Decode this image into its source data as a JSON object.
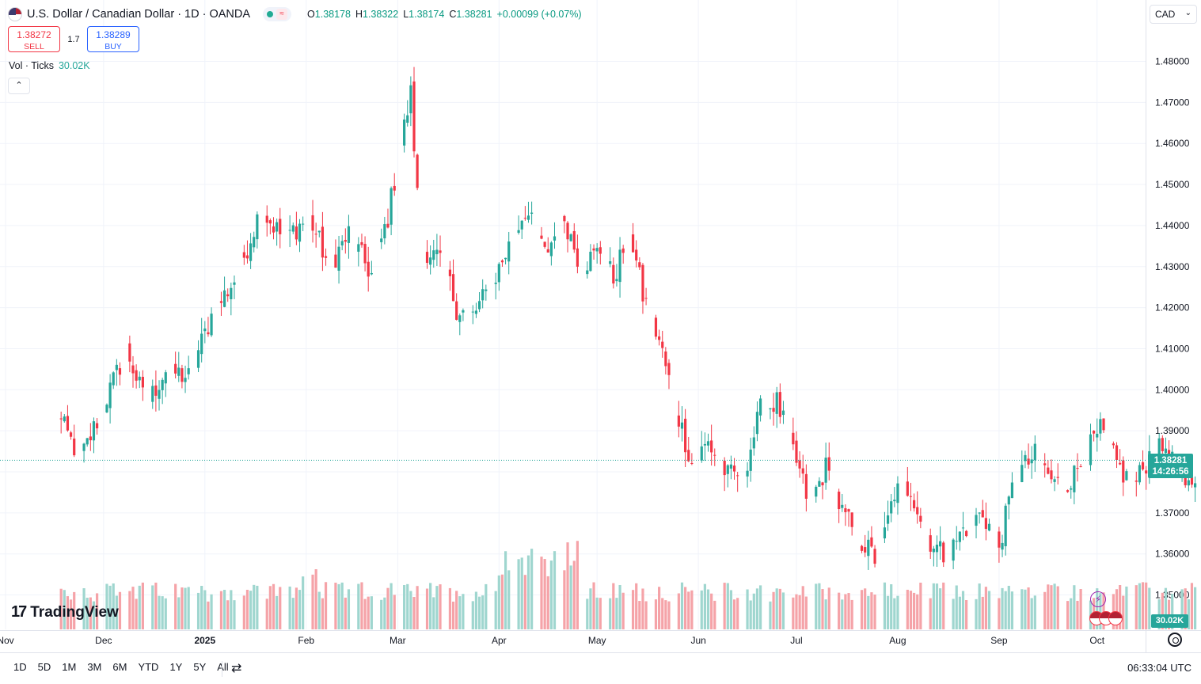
{
  "header": {
    "title": "U.S. Dollar / Canadian Dollar · 1D · OANDA",
    "ohlc": [
      {
        "k": "O",
        "v": "1.38178"
      },
      {
        "k": "H",
        "v": "1.38322"
      },
      {
        "k": "L",
        "v": "1.38174"
      },
      {
        "k": "C",
        "v": "1.38281"
      },
      {
        "k": "",
        "v": "+0.00099 (+0.07%)"
      }
    ]
  },
  "trade": {
    "sell_price": "1.38272",
    "sell_label": "SELL",
    "spread": "1.7",
    "buy_price": "1.38289",
    "buy_label": "BUY"
  },
  "volume": {
    "label": "Vol · Ticks",
    "value": "30.02K",
    "tag": "30.02K"
  },
  "currency": {
    "selected": "CAD"
  },
  "last_price": {
    "price": "1.38281",
    "countdown": "14:26:56"
  },
  "toolbar": {
    "periods": [
      "1D",
      "5D",
      "1M",
      "3M",
      "6M",
      "YTD",
      "1Y",
      "5Y",
      "All"
    ],
    "clock": "06:33:04 UTC"
  },
  "logo": {
    "text": "TradingView"
  },
  "colors": {
    "up": "#26a69a",
    "down": "#f23645",
    "vol_up": "#9fd6cf",
    "vol_down": "#f5a3a8",
    "grid": "#f0f3fa",
    "last": "#26a69a"
  },
  "chart_data": {
    "type": "candlestick",
    "symbol": "USDCAD",
    "interval": "1D",
    "xlabels": [
      "Nov",
      "Dec",
      "2025",
      "Feb",
      "Mar",
      "Apr",
      "May",
      "Jun",
      "Jul",
      "Aug",
      "Sep",
      "Oct"
    ],
    "x_label_days": [
      -15,
      15,
      46,
      77,
      105,
      136,
      166,
      197,
      227,
      258,
      289,
      319
    ],
    "ytick_labels": [
      "1.48000",
      "1.47000",
      "1.46000",
      "1.45000",
      "1.44000",
      "1.43000",
      "1.42000",
      "1.41000",
      "1.40000",
      "1.39000",
      "1.38000",
      "1.37000",
      "1.36000",
      "1.35000"
    ],
    "ylim": [
      1.3455,
      1.4845
    ],
    "anchors": [
      [
        0,
        1.395
      ],
      [
        8,
        1.383
      ],
      [
        17,
        1.4
      ],
      [
        22,
        1.41
      ],
      [
        28,
        1.396
      ],
      [
        34,
        1.405
      ],
      [
        41,
        1.403
      ],
      [
        48,
        1.418
      ],
      [
        56,
        1.428
      ],
      [
        63,
        1.444
      ],
      [
        70,
        1.437
      ],
      [
        78,
        1.442
      ],
      [
        84,
        1.43
      ],
      [
        90,
        1.438
      ],
      [
        97,
        1.428
      ],
      [
        102,
        1.442
      ],
      [
        106,
        1.46
      ],
      [
        109,
        1.472
      ],
      [
        112,
        1.435
      ],
      [
        119,
        1.431
      ],
      [
        123,
        1.42
      ],
      [
        128,
        1.418
      ],
      [
        134,
        1.426
      ],
      [
        139,
        1.435
      ],
      [
        144,
        1.444
      ],
      [
        150,
        1.433
      ],
      [
        156,
        1.442
      ],
      [
        161,
        1.43
      ],
      [
        167,
        1.434
      ],
      [
        171,
        1.427
      ],
      [
        176,
        1.439
      ],
      [
        180,
        1.423
      ],
      [
        185,
        1.412
      ],
      [
        190,
        1.396
      ],
      [
        195,
        1.382
      ],
      [
        200,
        1.387
      ],
      [
        206,
        1.379
      ],
      [
        211,
        1.38
      ],
      [
        216,
        1.395
      ],
      [
        221,
        1.397
      ],
      [
        226,
        1.385
      ],
      [
        231,
        1.372
      ],
      [
        236,
        1.381
      ],
      [
        241,
        1.37
      ],
      [
        246,
        1.364
      ],
      [
        252,
        1.358
      ],
      [
        257,
        1.375
      ],
      [
        262,
        1.376
      ],
      [
        267,
        1.364
      ],
      [
        273,
        1.359
      ],
      [
        278,
        1.366
      ],
      [
        284,
        1.37
      ],
      [
        289,
        1.362
      ],
      [
        294,
        1.379
      ],
      [
        300,
        1.384
      ],
      [
        306,
        1.377
      ],
      [
        311,
        1.378
      ],
      [
        316,
        1.385
      ],
      [
        320,
        1.39
      ],
      [
        325,
        1.382
      ],
      [
        330,
        1.376
      ],
      [
        335,
        1.384
      ],
      [
        340,
        1.386
      ],
      [
        346,
        1.375
      ],
      [
        352,
        1.3828
      ]
    ],
    "last_close": 1.38281,
    "last_volume": "30.02K"
  }
}
